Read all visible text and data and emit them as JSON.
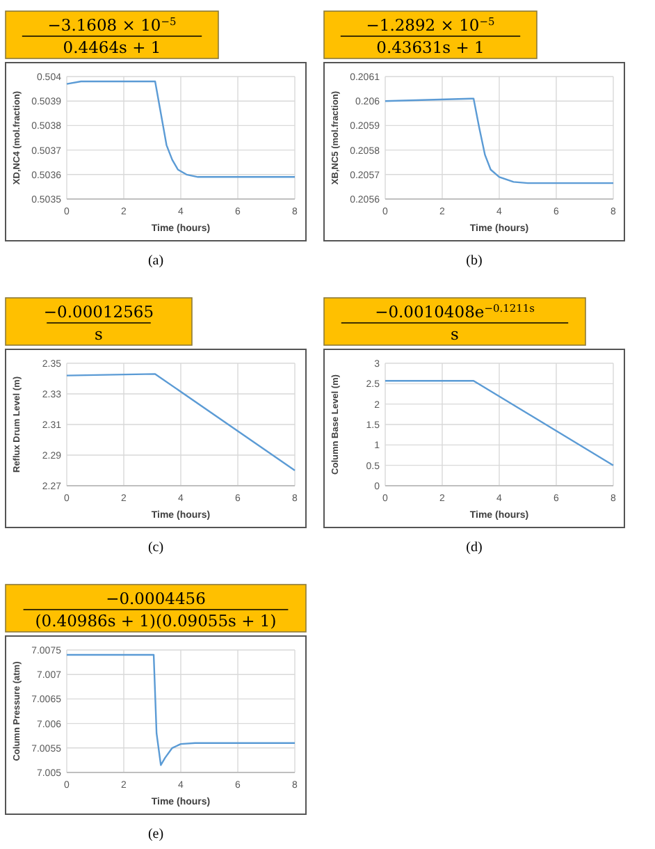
{
  "chart_data": [
    {
      "type": "line",
      "title": "−3.1608 × 10$^{−5}$",
      "subtitle": "0.4464s + 1",
      "xlabel": "Time (hours)",
      "ylabel": "XD,NC4 (mol.fraction)",
      "annotations": [
        "(a)"
      ],
      "x": [
        0,
        0.5,
        1,
        3.1,
        3.3,
        3.5,
        3.7,
        3.9,
        4.2,
        4.6,
        8
      ],
      "series": [
        {
          "color": "#5b9bd5",
          "values": [
            0.50397,
            0.50398,
            0.50398,
            0.50398,
            0.50385,
            0.50372,
            0.50366,
            0.50362,
            0.5036,
            0.50359,
            0.50359
          ]
        }
      ],
      "xlim": [
        0,
        8
      ],
      "xticks": [
        0,
        2,
        4,
        6,
        8
      ],
      "ylim": [
        0.5035,
        0.504
      ],
      "yticks": [
        0.5035,
        0.5036,
        0.5037,
        0.5038,
        0.5039,
        0.504
      ],
      "grid": true
    },
    {
      "type": "line",
      "title": "−1.2892 × 10$^{−5}$",
      "subtitle": "0.43631s + 1",
      "xlabel": "Time (hours)",
      "ylabel": "XB,NC5 (mol.fraction)",
      "annotations": [
        "(b)"
      ],
      "x": [
        0,
        3,
        3.1,
        3.3,
        3.5,
        3.7,
        4,
        4.5,
        5,
        8
      ],
      "series": [
        {
          "color": "#5b9bd5",
          "values": [
            0.206,
            0.20601,
            0.20601,
            0.20589,
            0.20578,
            0.20572,
            0.20569,
            0.20567,
            0.205665,
            0.205665
          ]
        }
      ],
      "xlim": [
        0,
        8
      ],
      "xticks": [
        0,
        2,
        4,
        6,
        8
      ],
      "ylim": [
        0.2056,
        0.2061
      ],
      "yticks": [
        0.2056,
        0.2057,
        0.2058,
        0.2059,
        0.206,
        0.2061
      ],
      "grid": true
    },
    {
      "type": "line",
      "title": "−0.00012565",
      "subtitle": "s",
      "xlabel": "Time (hours)",
      "ylabel": "Reflux Drum Level (m)",
      "annotations": [
        "(c)"
      ],
      "x": [
        0,
        3.1,
        8
      ],
      "series": [
        {
          "color": "#5b9bd5",
          "values": [
            2.342,
            2.343,
            2.28
          ]
        }
      ],
      "xlim": [
        0,
        8
      ],
      "xticks": [
        0,
        2,
        4,
        6,
        8
      ],
      "ylim": [
        2.27,
        2.35
      ],
      "yticks": [
        2.27,
        2.29,
        2.31,
        2.33,
        2.35
      ],
      "grid": true
    },
    {
      "type": "line",
      "title": "−0.0010408e$^{−0.1211s}$",
      "subtitle": "s",
      "xlabel": "Time (hours)",
      "ylabel": "Column Base Level (m)",
      "annotations": [
        "(d)"
      ],
      "x": [
        0,
        3.1,
        8
      ],
      "series": [
        {
          "color": "#5b9bd5",
          "values": [
            2.57,
            2.57,
            0.5
          ]
        }
      ],
      "xlim": [
        0,
        8
      ],
      "xticks": [
        0,
        2,
        4,
        6,
        8
      ],
      "ylim": [
        0,
        3
      ],
      "yticks": [
        0,
        0.5,
        1,
        1.5,
        2,
        2.5,
        3
      ],
      "grid": true
    },
    {
      "type": "line",
      "title": "−0.0004456",
      "subtitle": "(0.40986s + 1)(0.09055s + 1)",
      "xlabel": "Time (hours)",
      "ylabel": "Column Pressure (atm)",
      "annotations": [
        "(e)"
      ],
      "x": [
        0,
        3.05,
        3.15,
        3.3,
        3.45,
        3.7,
        4,
        4.5,
        8
      ],
      "series": [
        {
          "color": "#5b9bd5",
          "values": [
            7.0074,
            7.0074,
            7.0058,
            7.00515,
            7.0053,
            7.0055,
            7.00558,
            7.0056,
            7.0056
          ]
        }
      ],
      "xlim": [
        0,
        8
      ],
      "xticks": [
        0,
        2,
        4,
        6,
        8
      ],
      "ylim": [
        7.005,
        7.0075
      ],
      "yticks": [
        7.005,
        7.0055,
        7.006,
        7.0065,
        7.007,
        7.0075
      ],
      "grid": true
    }
  ]
}
